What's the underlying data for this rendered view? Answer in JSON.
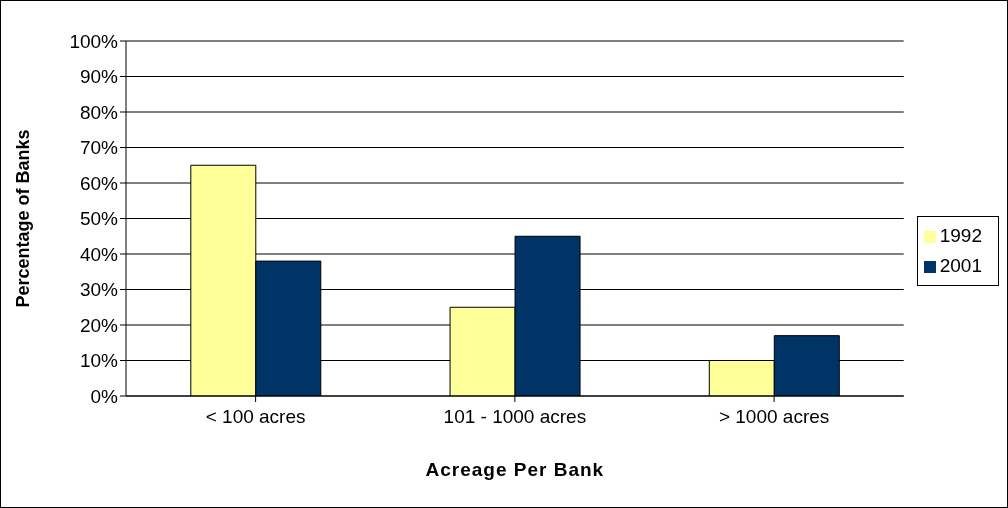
{
  "chart_data": {
    "type": "bar",
    "xlabel": "Acreage Per Bank",
    "ylabel": "Percentage of Banks",
    "categories": [
      "< 100 acres",
      "101 - 1000 acres",
      "> 1000 acres"
    ],
    "series": [
      {
        "name": "1992",
        "color": "#ffff99",
        "values": [
          65,
          25,
          10
        ]
      },
      {
        "name": "2001",
        "color": "#003366",
        "values": [
          38,
          45,
          17
        ]
      }
    ],
    "ylim": [
      0,
      100
    ],
    "yticks": [
      {
        "value": 0,
        "label": "0%"
      },
      {
        "value": 10,
        "label": "10%"
      },
      {
        "value": 20,
        "label": "20%"
      },
      {
        "value": 30,
        "label": "30%"
      },
      {
        "value": 40,
        "label": "40%"
      },
      {
        "value": 50,
        "label": "50%"
      },
      {
        "value": 60,
        "label": "60%"
      },
      {
        "value": 70,
        "label": "70%"
      },
      {
        "value": 80,
        "label": "80%"
      },
      {
        "value": 90,
        "label": "90%"
      },
      {
        "value": 100,
        "label": "100%"
      }
    ],
    "grid": "y",
    "legend": "right"
  }
}
